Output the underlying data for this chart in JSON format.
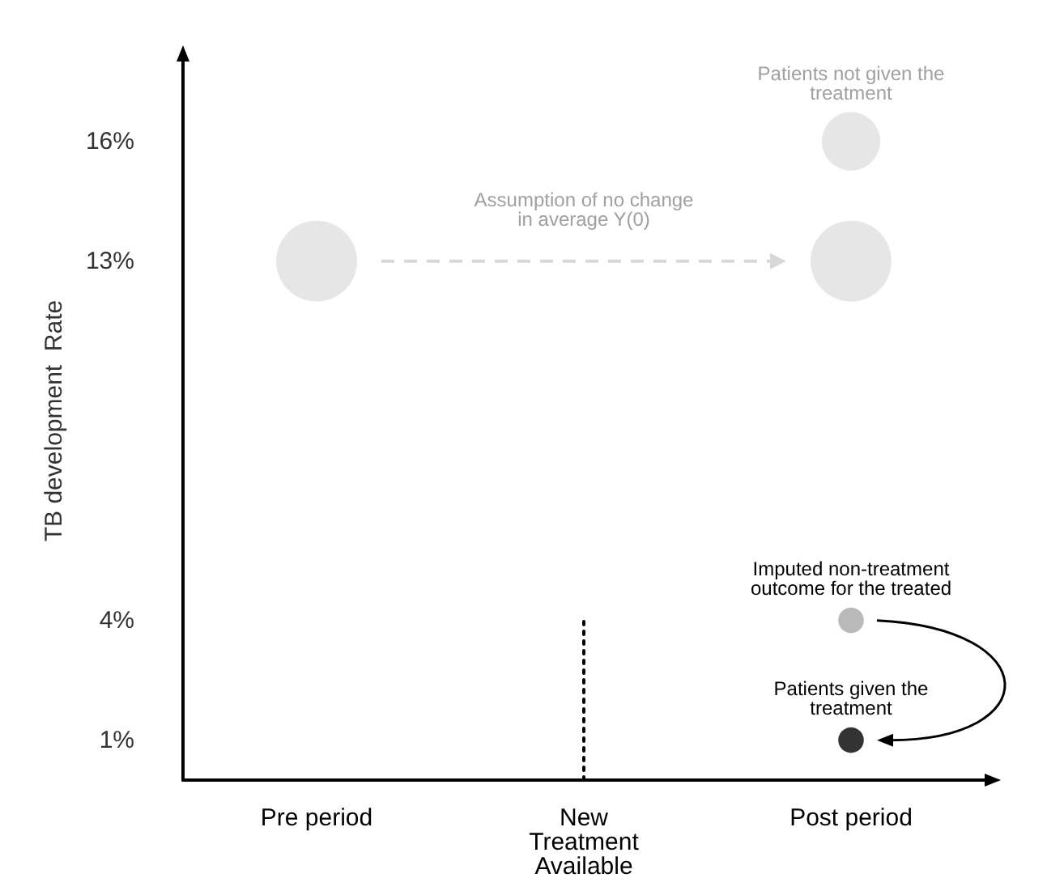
{
  "chart_data": {
    "type": "bubble",
    "ylabel": "TB development  Rate",
    "categories": [
      "Pre period",
      "New\nTreatment\nAvailable",
      "Post period"
    ],
    "ylim": [
      0,
      18
    ],
    "yticks": [
      {
        "value": 1,
        "label": "1%"
      },
      {
        "value": 4,
        "label": "4%"
      },
      {
        "value": 13,
        "label": "13%"
      },
      {
        "value": 16,
        "label": "16%"
      }
    ],
    "series": [
      {
        "color": "#e0e0e0",
        "x": [
          "Pre period",
          "Post period",
          "Post period"
        ],
        "values": [
          13,
          16,
          13
        ],
        "sizes": [
          1,
          0.52,
          1
        ]
      },
      {
        "color": "#a8a8a8",
        "x": [
          "Post period"
        ],
        "values": [
          4
        ],
        "sizes": [
          0.1
        ]
      },
      {
        "color": "#000000",
        "x": [
          "Post period"
        ],
        "values": [
          1
        ],
        "sizes": [
          0.1
        ]
      },
      {
        "type": "line",
        "color": "#000000",
        "line_style": "dotted",
        "marker": "none",
        "x": [
          "New\nTreatment\nAvailable",
          "New\nTreatment\nAvailable"
        ],
        "values": [
          0,
          4
        ]
      }
    ],
    "annotations": [
      {
        "text": "Patients not given the\ntreatment",
        "x": "Post period",
        "y": 16
      },
      "Assumption of no change\nin average Y(0)",
      {
        "text": "Imputed non-treatment\noutcome for the treated",
        "x": "Post period",
        "y": 4
      },
      {
        "text": "Patients given the\ntreatment",
        "x": "Post period",
        "y": 1
      }
    ]
  }
}
